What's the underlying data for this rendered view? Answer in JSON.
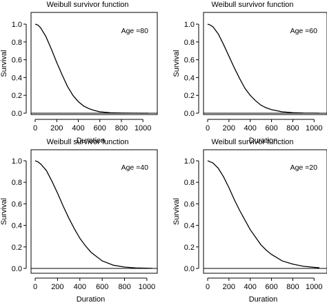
{
  "chart_data": [
    {
      "type": "line",
      "title": "Weibull survivor function",
      "xlabel": "Duration",
      "ylabel": "Survival",
      "annotation": "Age =80",
      "xlim": [
        0,
        1050
      ],
      "ylim": [
        0,
        1.0
      ],
      "xticks": [
        0,
        200,
        400,
        600,
        800,
        1000
      ],
      "yticks": [
        0.0,
        0.2,
        0.4,
        0.6,
        0.8,
        1.0
      ],
      "xtick_labels": [
        "0",
        "200",
        "400",
        "600",
        "800",
        "1000"
      ],
      "ytick_labels": [
        "0.0",
        "0.2",
        "0.4",
        "0.6",
        "0.8",
        "1.0"
      ],
      "reference_line_y": 0.0,
      "series": [
        {
          "x": [
            0,
            25,
            50,
            100,
            150,
            200,
            250,
            300,
            350,
            400,
            450,
            500,
            550,
            600,
            700,
            800,
            900,
            1000,
            1050
          ],
          "y": [
            1.0,
            0.99,
            0.96,
            0.86,
            0.72,
            0.57,
            0.43,
            0.3,
            0.2,
            0.13,
            0.08,
            0.05,
            0.03,
            0.015,
            0.005,
            0.002,
            0.001,
            0.0,
            0.0
          ]
        }
      ]
    },
    {
      "type": "line",
      "title": "Weibull survivor function",
      "xlabel": "Duration",
      "ylabel": "Survival",
      "annotation": "Age =60",
      "xlim": [
        0,
        1050
      ],
      "ylim": [
        0,
        1.0
      ],
      "xticks": [
        0,
        200,
        400,
        600,
        800,
        1000
      ],
      "yticks": [
        0.0,
        0.2,
        0.4,
        0.6,
        0.8,
        1.0
      ],
      "xtick_labels": [
        "0",
        "200",
        "400",
        "600",
        "800",
        "1000"
      ],
      "ytick_labels": [
        "0.0",
        "0.2",
        "0.4",
        "0.6",
        "0.8",
        "1.0"
      ],
      "reference_line_y": 0.0,
      "series": [
        {
          "x": [
            0,
            25,
            50,
            100,
            150,
            200,
            250,
            300,
            350,
            400,
            450,
            500,
            550,
            600,
            700,
            800,
            900,
            1000,
            1050
          ],
          "y": [
            1.0,
            0.99,
            0.97,
            0.89,
            0.77,
            0.64,
            0.51,
            0.39,
            0.28,
            0.2,
            0.14,
            0.09,
            0.06,
            0.04,
            0.015,
            0.006,
            0.002,
            0.001,
            0.0
          ]
        }
      ]
    },
    {
      "type": "line",
      "title": "Weibull survivor function",
      "xlabel": "Duration",
      "ylabel": "Survival",
      "annotation": "Age =40",
      "xlim": [
        0,
        1050
      ],
      "ylim": [
        0,
        1.0
      ],
      "xticks": [
        0,
        200,
        400,
        600,
        800,
        1000
      ],
      "yticks": [
        0.0,
        0.2,
        0.4,
        0.6,
        0.8,
        1.0
      ],
      "xtick_labels": [
        "0",
        "200",
        "400",
        "600",
        "800",
        "1000"
      ],
      "ytick_labels": [
        "0.0",
        "0.2",
        "0.4",
        "0.6",
        "0.8",
        "1.0"
      ],
      "reference_line_y": 0.0,
      "series": [
        {
          "x": [
            0,
            25,
            50,
            100,
            150,
            200,
            250,
            300,
            350,
            400,
            450,
            500,
            550,
            600,
            700,
            800,
            900,
            1000,
            1050
          ],
          "y": [
            1.0,
            0.99,
            0.97,
            0.91,
            0.81,
            0.7,
            0.58,
            0.47,
            0.37,
            0.28,
            0.21,
            0.15,
            0.11,
            0.07,
            0.03,
            0.013,
            0.005,
            0.002,
            0.001
          ]
        }
      ]
    },
    {
      "type": "line",
      "title": "Weibull survivor function",
      "xlabel": "Duration",
      "ylabel": "Survival",
      "annotation": "Age =20",
      "xlim": [
        0,
        1050
      ],
      "ylim": [
        0,
        1.0
      ],
      "xticks": [
        0,
        200,
        400,
        600,
        800,
        1000
      ],
      "yticks": [
        0.0,
        0.2,
        0.4,
        0.6,
        0.8,
        1.0
      ],
      "xtick_labels": [
        "0",
        "200",
        "400",
        "600",
        "800",
        "1000"
      ],
      "ytick_labels": [
        "0.0",
        "0.2",
        "0.4",
        "0.6",
        "0.8",
        "1.0"
      ],
      "reference_line_y": 0.0,
      "series": [
        {
          "x": [
            0,
            25,
            50,
            100,
            150,
            200,
            250,
            300,
            350,
            400,
            450,
            500,
            550,
            600,
            700,
            800,
            900,
            1000,
            1050
          ],
          "y": [
            1.0,
            0.99,
            0.98,
            0.93,
            0.85,
            0.75,
            0.64,
            0.54,
            0.45,
            0.36,
            0.29,
            0.22,
            0.17,
            0.13,
            0.07,
            0.04,
            0.02,
            0.01,
            0.006
          ]
        }
      ]
    }
  ]
}
